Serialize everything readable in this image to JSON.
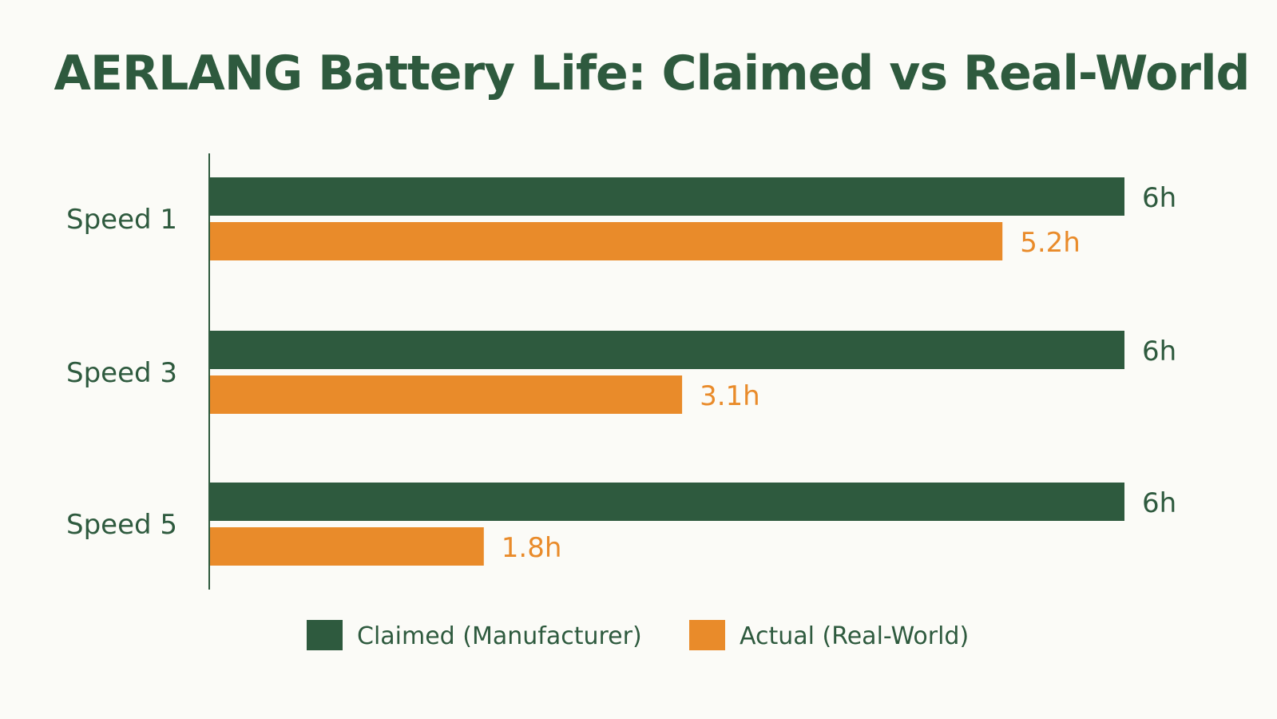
{
  "chart_data": {
    "type": "bar",
    "orientation": "horizontal",
    "title": "AERLANG Battery Life: Claimed vs Real-World",
    "categories": [
      "Speed 1",
      "Speed 3",
      "Speed 5"
    ],
    "series": [
      {
        "name": "Claimed (Manufacturer)",
        "values": [
          6,
          6,
          6
        ],
        "labels": [
          "6h",
          "6h",
          "6h"
        ],
        "color": "#2e5a3e"
      },
      {
        "name": "Actual (Real-World)",
        "values": [
          5.2,
          3.1,
          1.8
        ],
        "labels": [
          "5.2h",
          "3.1h",
          "1.8h"
        ],
        "color": "#e98b2a"
      }
    ],
    "xlim": [
      0,
      6
    ],
    "unit": "h",
    "grid": false,
    "legend_position": "bottom-center",
    "colors": {
      "title": "#2e5a3e",
      "category_label": "#2e5a3e",
      "axis": "#2e5a3e",
      "legend_text": "#2e5a3e"
    }
  }
}
